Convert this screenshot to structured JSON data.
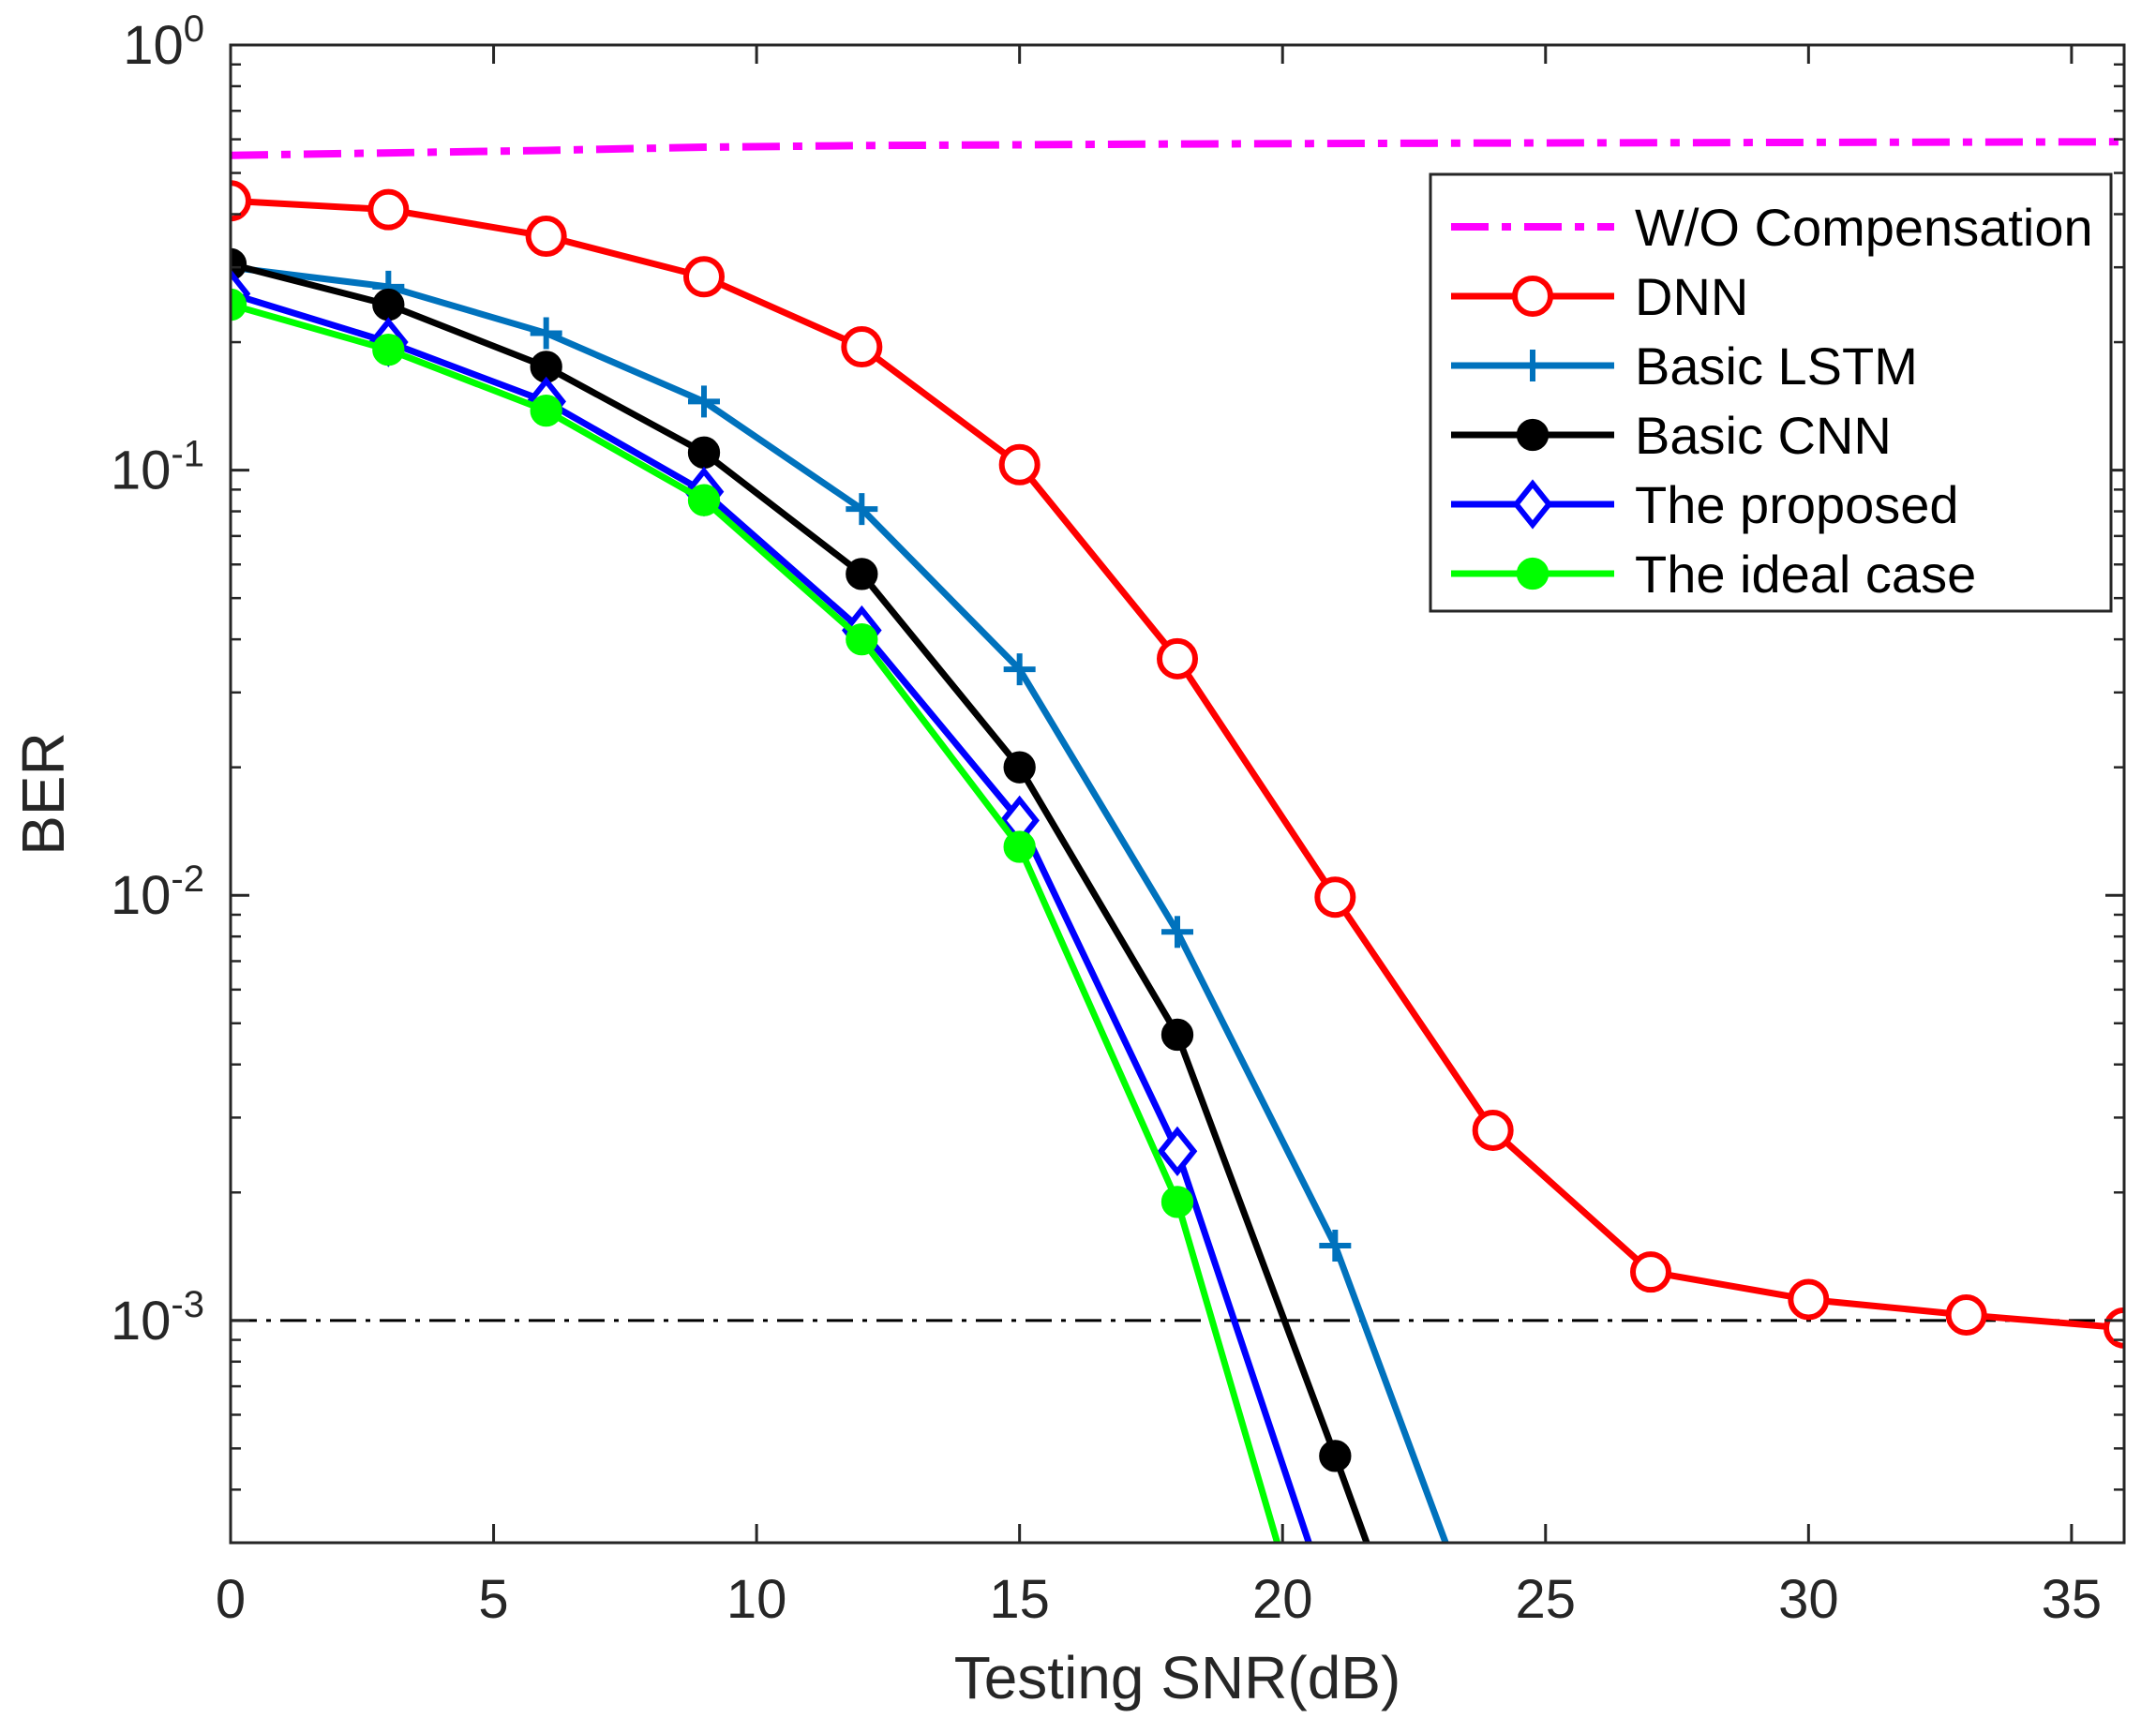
{
  "chart_data": {
    "type": "line",
    "title": "",
    "xlabel": "Testing SNR(dB)",
    "ylabel": "BER",
    "xlim": [
      0,
      36
    ],
    "ylim": [
      0.0003,
      1
    ],
    "yscale": "log",
    "grid": false,
    "legend_position": "top-right",
    "x_ticks": [
      0,
      5,
      10,
      15,
      20,
      25,
      30,
      35
    ],
    "y_ticks": [
      {
        "value": 1,
        "base": "10",
        "exp": "0"
      },
      {
        "value": 0.1,
        "base": "10",
        "exp": "-1"
      },
      {
        "value": 0.01,
        "base": "10",
        "exp": "-2"
      },
      {
        "value": 0.001,
        "base": "10",
        "exp": "-3"
      }
    ],
    "reference_line": {
      "y": 0.001,
      "color": "#000000",
      "style": "dash-dot"
    },
    "series": [
      {
        "name": "W/O Compensation",
        "color": "#ff00ff",
        "style": "dash-dot",
        "marker": "none",
        "x": [
          0,
          6,
          9,
          12,
          18,
          24,
          30,
          36
        ],
        "y": [
          0.55,
          0.565,
          0.575,
          0.58,
          0.585,
          0.588,
          0.59,
          0.592
        ]
      },
      {
        "name": "DNN",
        "color": "#ff0000",
        "style": "solid",
        "marker": "circle-open",
        "x": [
          0,
          3,
          6,
          9,
          12,
          15,
          18,
          21,
          24,
          27,
          30,
          33,
          36
        ],
        "y": [
          0.43,
          0.41,
          0.355,
          0.285,
          0.195,
          0.103,
          0.036,
          0.0099,
          0.0028,
          0.0013,
          0.00112,
          0.00103,
          0.00096
        ]
      },
      {
        "name": "Basic LSTM",
        "color": "#0072bd",
        "style": "solid",
        "marker": "plus",
        "x": [
          0,
          3,
          6,
          9,
          12,
          15,
          18,
          21,
          23.1
        ],
        "y": [
          0.3,
          0.27,
          0.21,
          0.145,
          0.081,
          0.034,
          0.0082,
          0.0015,
          0.0003
        ]
      },
      {
        "name": "Basic CNN",
        "color": "#000000",
        "style": "solid",
        "marker": "circle-filled",
        "x": [
          0,
          3,
          6,
          9,
          12,
          15,
          18,
          21,
          21.6
        ],
        "y": [
          0.305,
          0.245,
          0.175,
          0.11,
          0.057,
          0.02,
          0.0047,
          0.00048,
          0.0003
        ]
      },
      {
        "name": "The proposed",
        "color": "#0000ff",
        "style": "solid",
        "marker": "diamond",
        "x": [
          0,
          3,
          6,
          9,
          12,
          15,
          18,
          20.5
        ],
        "y": [
          0.26,
          0.2,
          0.145,
          0.089,
          0.042,
          0.015,
          0.0025,
          0.0003
        ]
      },
      {
        "name": "The ideal case",
        "color": "#00ff00",
        "style": "solid",
        "marker": "circle-filled",
        "x": [
          0,
          3,
          6,
          9,
          12,
          15,
          18,
          19.9
        ],
        "y": [
          0.245,
          0.192,
          0.138,
          0.085,
          0.04,
          0.013,
          0.0019,
          0.0003
        ]
      }
    ]
  }
}
